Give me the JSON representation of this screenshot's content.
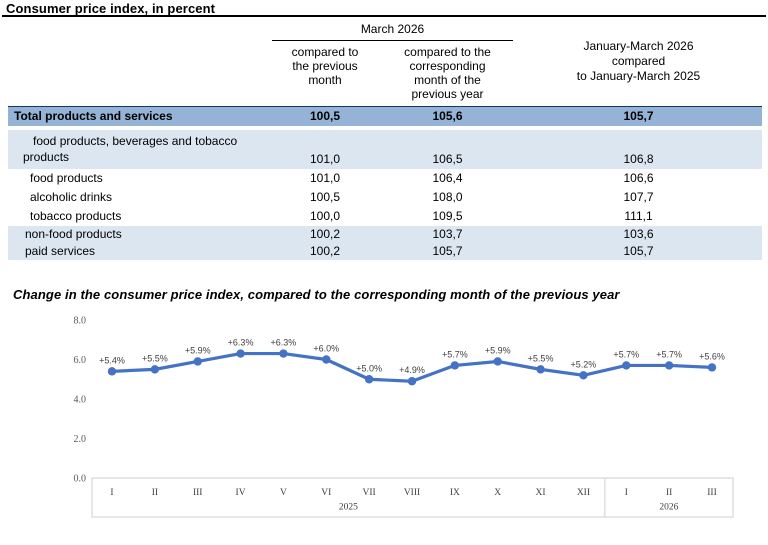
{
  "page_title": "Consumer price index, in percent",
  "table": {
    "group_header": "March 2026",
    "sub_headers": {
      "col1": "compared to\nthe previous\nmonth",
      "col2": "compared to the\ncorresponding\nmonth of the\nprevious year",
      "col3": "January-March 2026\ncompared\nto January-March 2025"
    },
    "rows": [
      {
        "label": "Total products and services",
        "values": [
          "100,5",
          "105,6",
          "105,7"
        ],
        "style": "total"
      },
      {
        "label": "food products, beverages and tobacco products",
        "values": [
          "101,0",
          "106,5",
          "106,8"
        ],
        "style": "group"
      },
      {
        "label": "food products",
        "values": [
          "101,0",
          "106,4",
          "106,6"
        ],
        "style": "sub"
      },
      {
        "label": "alcoholic drinks",
        "values": [
          "100,5",
          "108,0",
          "107,7"
        ],
        "style": "sub"
      },
      {
        "label": "tobacco products",
        "values": [
          "100,0",
          "109,5",
          "111,1"
        ],
        "style": "sub"
      },
      {
        "label": "non-food products",
        "values": [
          "100,2",
          "103,7",
          "103,6"
        ],
        "style": "group2"
      },
      {
        "label": "paid services",
        "values": [
          "100,2",
          "105,7",
          "105,7"
        ],
        "style": "group2"
      }
    ]
  },
  "chart_data": {
    "type": "line",
    "title": "Change in the consumer price index, compared to the corresponding month of the previous year",
    "x_categories": [
      "I",
      "II",
      "III",
      "IV",
      "V",
      "VI",
      "VII",
      "VIII",
      "IX",
      "X",
      "XI",
      "XII",
      "I",
      "II",
      "III"
    ],
    "x_year_groups": [
      {
        "label": "2025",
        "months": 12
      },
      {
        "label": "2026",
        "months": 3
      }
    ],
    "values": [
      5.4,
      5.5,
      5.9,
      6.3,
      6.3,
      6.0,
      5.0,
      4.9,
      5.7,
      5.9,
      5.5,
      5.2,
      5.7,
      5.7,
      5.6
    ],
    "point_labels": [
      "+5.4%",
      "+5.5%",
      "+5.9%",
      "+6.3%",
      "+6.3%",
      "+6.0%",
      "+5.0%",
      "+4.9%",
      "+5.7%",
      "+5.9%",
      "+5.5%",
      "+5.2%",
      "+5.7%",
      "+5.7%",
      "+5.6%"
    ],
    "y_ticks": [
      "0.0",
      "2.0",
      "4.0",
      "6.0",
      "8.0"
    ],
    "ylim": [
      0,
      8
    ],
    "grid": false,
    "legend": "none",
    "line_color": "#4472C4",
    "marker": "circle"
  },
  "colors": {
    "total_row_bg": "#95B3D7",
    "band_row_bg": "#DCE6F1",
    "chart_line": "#4472C4",
    "axis_text": "#595959",
    "label_text": "#404040"
  }
}
